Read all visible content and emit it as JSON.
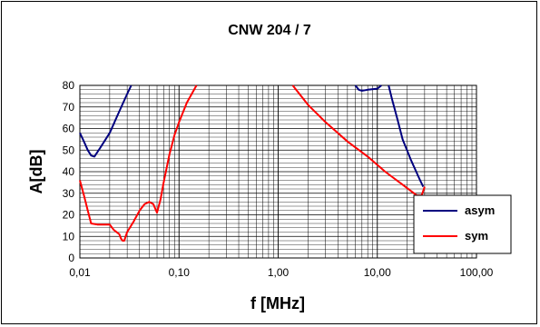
{
  "chart_data": {
    "type": "line",
    "title": "CNW 204 / 7",
    "xlabel": "f [MHz]",
    "ylabel": "A[dB]",
    "x_scale": "log",
    "xlim": [
      0.01,
      100
    ],
    "ylim": [
      0,
      80
    ],
    "x_ticks": [
      0.01,
      0.1,
      1,
      10,
      100
    ],
    "x_tick_labels": [
      "0,01",
      "0,10",
      "1,00",
      "10,00",
      "100,00"
    ],
    "y_ticks": [
      0,
      10,
      20,
      30,
      40,
      50,
      60,
      70,
      80
    ],
    "y_tick_labels": [
      "0",
      "10",
      "20",
      "30",
      "40",
      "50",
      "60",
      "70",
      "80"
    ],
    "grid": true,
    "legend_position": "bottom-right",
    "series": [
      {
        "name": "asym",
        "color": "#00007f",
        "segments": [
          [
            [
              0.01,
              58
            ],
            [
              0.011,
              54
            ],
            [
              0.012,
              50
            ],
            [
              0.013,
              47.5
            ],
            [
              0.014,
              47
            ],
            [
              0.016,
              51
            ],
            [
              0.02,
              58
            ],
            [
              0.025,
              68
            ],
            [
              0.03,
              76
            ],
            [
              0.033,
              80
            ]
          ],
          [
            [
              6.0,
              80
            ],
            [
              6.5,
              78
            ],
            [
              7.0,
              77.5
            ],
            [
              8.0,
              78
            ],
            [
              10.0,
              78.5
            ],
            [
              11.0,
              80
            ]
          ],
          [
            [
              13.0,
              80
            ],
            [
              14.0,
              74
            ],
            [
              16.0,
              64
            ],
            [
              18.0,
              55
            ],
            [
              22.0,
              45
            ],
            [
              27.0,
              36
            ],
            [
              29.0,
              33
            ]
          ]
        ]
      },
      {
        "name": "sym",
        "color": "#ff0000",
        "segments": [
          [
            [
              0.01,
              36
            ],
            [
              0.011,
              29
            ],
            [
              0.012,
              22
            ],
            [
              0.013,
              16
            ],
            [
              0.015,
              15.5
            ],
            [
              0.02,
              15.5
            ],
            [
              0.022,
              13
            ],
            [
              0.025,
              11
            ],
            [
              0.026,
              9
            ],
            [
              0.027,
              8
            ],
            [
              0.028,
              8
            ],
            [
              0.03,
              12
            ],
            [
              0.035,
              17
            ],
            [
              0.04,
              22
            ],
            [
              0.045,
              25
            ],
            [
              0.05,
              26
            ],
            [
              0.055,
              25
            ],
            [
              0.06,
              21
            ],
            [
              0.065,
              27
            ],
            [
              0.07,
              35
            ],
            [
              0.08,
              48
            ],
            [
              0.09,
              57
            ],
            [
              0.1,
              63
            ],
            [
              0.12,
              72
            ],
            [
              0.15,
              80
            ]
          ],
          [
            [
              1.4,
              80
            ],
            [
              2.0,
              71
            ],
            [
              3.0,
              63
            ],
            [
              5.0,
              54
            ],
            [
              8.0,
              47
            ],
            [
              12.0,
              40
            ],
            [
              18.0,
              34
            ],
            [
              25.0,
              29
            ],
            [
              28.0,
              29
            ],
            [
              30.0,
              33
            ]
          ]
        ]
      }
    ]
  }
}
